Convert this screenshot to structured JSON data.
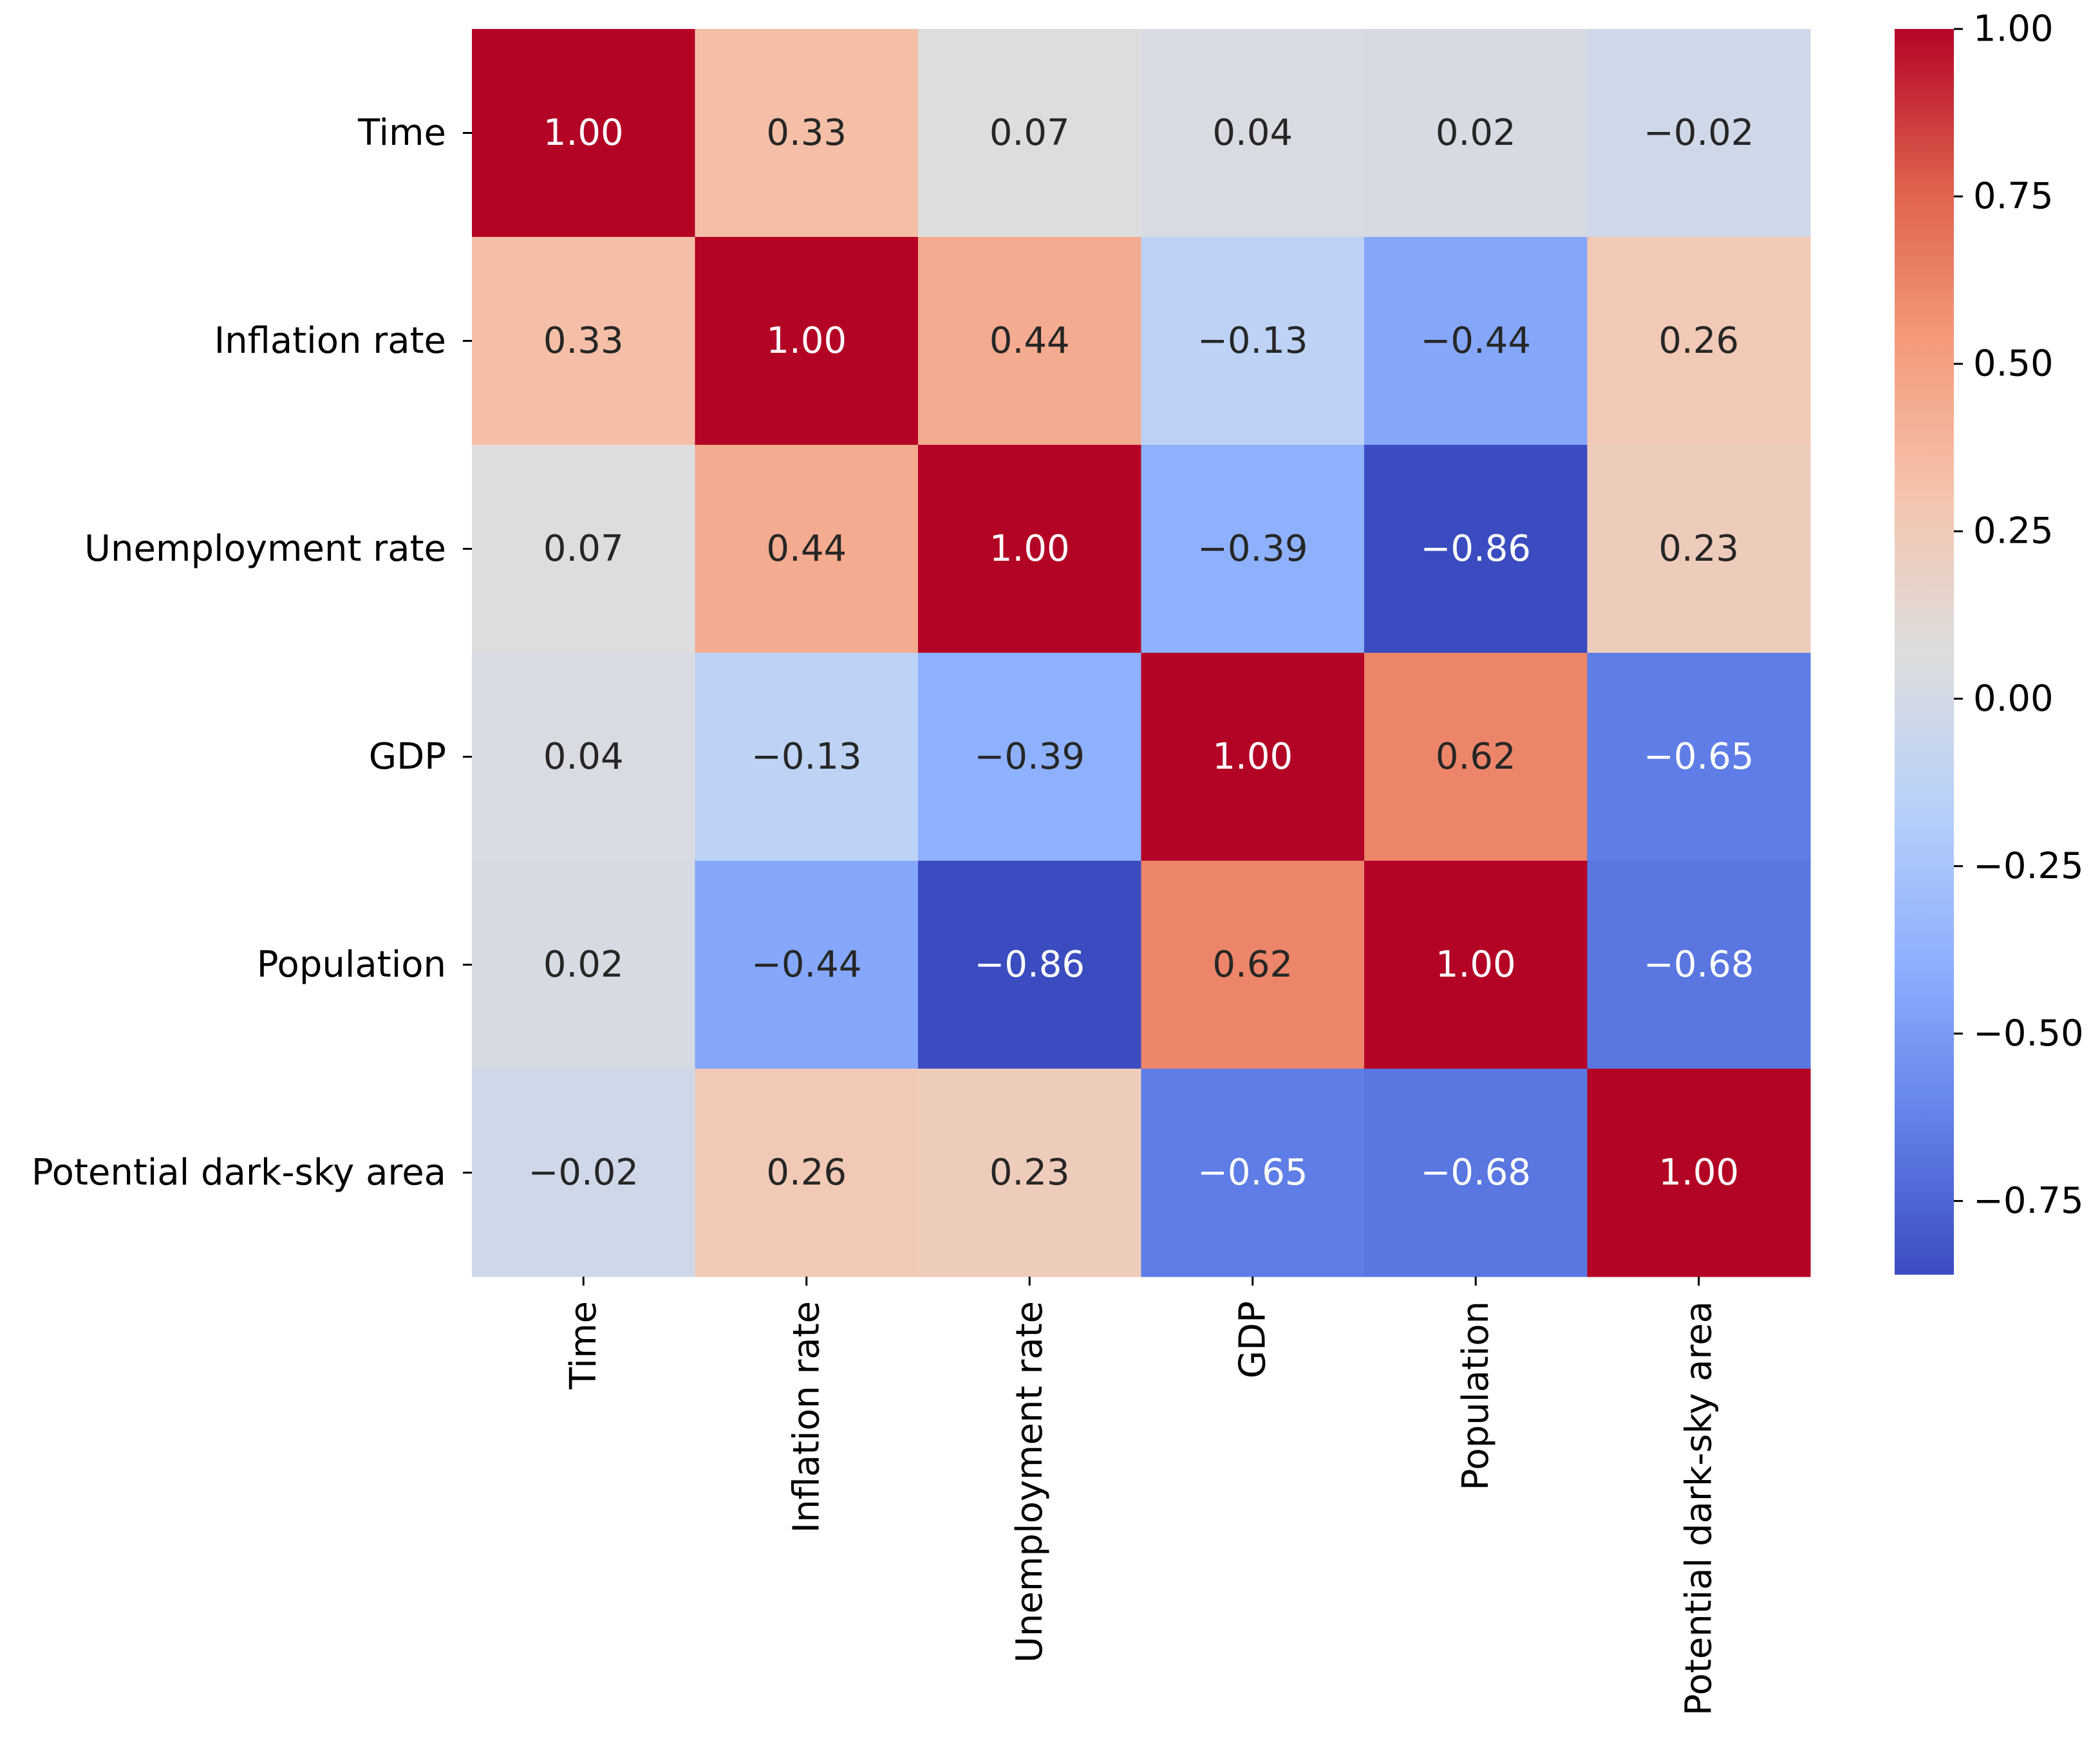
{
  "chart_data": {
    "type": "heatmap",
    "title": "",
    "xlabel": "",
    "ylabel": "",
    "labels": [
      "Time",
      "Inflation rate",
      "Unemployment rate",
      "GDP",
      "Population",
      "Potential dark-sky area"
    ],
    "matrix": [
      [
        1.0,
        0.33,
        0.07,
        0.04,
        0.02,
        -0.02
      ],
      [
        0.33,
        1.0,
        0.44,
        -0.13,
        -0.44,
        0.26
      ],
      [
        0.07,
        0.44,
        1.0,
        -0.39,
        -0.86,
        0.23
      ],
      [
        0.04,
        -0.13,
        -0.39,
        1.0,
        0.62,
        -0.65
      ],
      [
        0.02,
        -0.44,
        -0.86,
        0.62,
        1.0,
        -0.68
      ],
      [
        -0.02,
        0.26,
        0.23,
        -0.65,
        -0.68,
        1.0
      ]
    ],
    "value_range": [
      -0.86,
      1.0
    ],
    "colormap": "coolwarm",
    "colorbar_ticks": [
      1.0,
      0.75,
      0.5,
      0.25,
      0.0,
      -0.25,
      -0.5,
      -0.75
    ],
    "colorbar_tick_labels": [
      "1.00",
      "0.75",
      "0.50",
      "0.25",
      "0.00",
      "−0.25",
      "−0.50",
      "−0.75"
    ],
    "annotation_format": "2 decimals"
  }
}
